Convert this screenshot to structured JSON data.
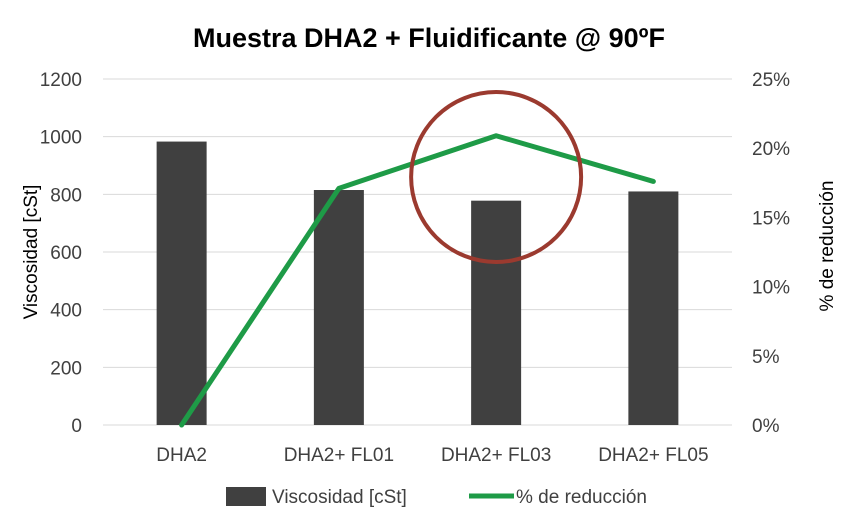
{
  "chart_data": {
    "type": "bar",
    "title": "Muestra DHA2 + Fluidificante @ 90ºF",
    "categories": [
      "DHA2",
      "DHA2+ FL01",
      "DHA2+ FL03",
      "DHA2+ FL05"
    ],
    "ylabel": "Viscosidad [cSt]",
    "y2label": "% de reducción",
    "ylim": [
      0,
      1200
    ],
    "yticks": [
      "0",
      "200",
      "400",
      "600",
      "800",
      "1000",
      "1200"
    ],
    "y2lim": [
      0,
      25
    ],
    "y2ticks": [
      "0%",
      "5%",
      "10%",
      "15%",
      "20%",
      "25%"
    ],
    "grid": true,
    "legend_position": "bottom",
    "series": [
      {
        "name": "Viscosidad [cSt]",
        "type": "bar",
        "axis": "left",
        "color": "#404040",
        "values": [
          983,
          815,
          778,
          810
        ]
      },
      {
        "name": "% de reducción",
        "type": "line",
        "axis": "right",
        "color": "#1e9b47",
        "values": [
          0,
          17.1,
          20.9,
          17.6
        ]
      }
    ],
    "annotations": [
      {
        "type": "circle",
        "target": "DHA2+ FL03",
        "color": "#9b3a2f"
      }
    ]
  }
}
